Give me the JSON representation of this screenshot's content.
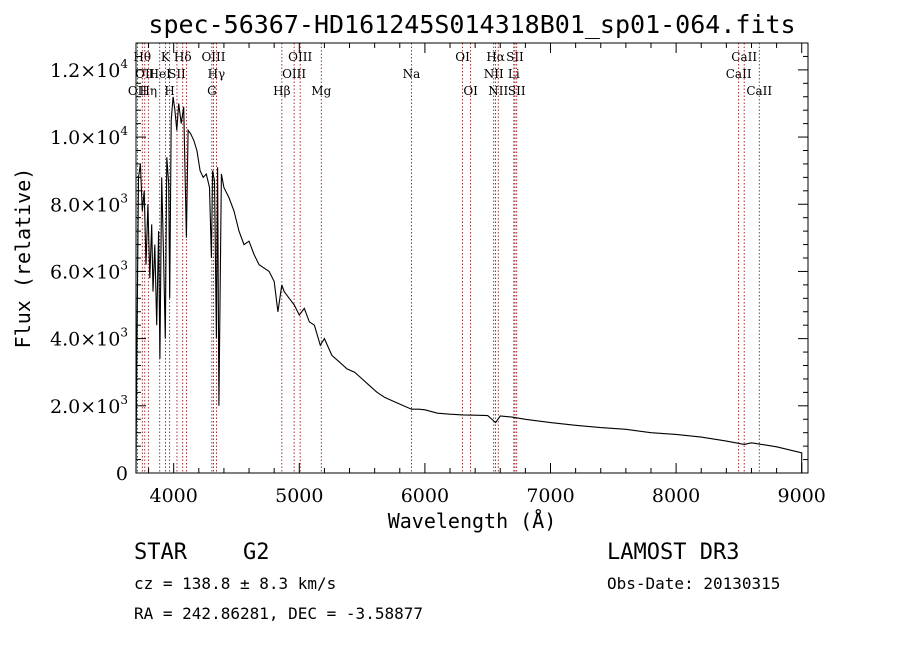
{
  "chart_data": {
    "type": "line",
    "title": "spec-56367-HD161245S014318B01_sp01-064.fits",
    "xlabel": "Wavelength (Å)",
    "ylabel": "Flux (relative)",
    "xlim": [
      3700,
      9050
    ],
    "ylim": [
      0,
      12800
    ],
    "x_ticks": [
      4000,
      5000,
      6000,
      7000,
      8000,
      9000
    ],
    "x_tick_labels": [
      "4000",
      "5000",
      "6000",
      "7000",
      "8000",
      "9000"
    ],
    "y_ticks": [
      0,
      2000,
      4000,
      6000,
      8000,
      10000,
      12000
    ],
    "y_tick_labels": [
      {
        "mantissa": "0",
        "exp": ""
      },
      {
        "mantissa": "2.0×10",
        "exp": "3"
      },
      {
        "mantissa": "4.0×10",
        "exp": "3"
      },
      {
        "mantissa": "6.0×10",
        "exp": "3"
      },
      {
        "mantissa": "8.0×10",
        "exp": "3"
      },
      {
        "mantissa": "1.0×10",
        "exp": "4"
      },
      {
        "mantissa": "1.2×10",
        "exp": "4"
      }
    ],
    "series": [
      {
        "x": [
          3700,
          3705,
          3720,
          3735,
          3750,
          3765,
          3780,
          3795,
          3810,
          3825,
          3835,
          3850,
          3865,
          3880,
          3890,
          3905,
          3920,
          3933,
          3945,
          3960,
          3968,
          3980,
          3995,
          4010,
          4025,
          4040,
          4060,
          4080,
          4101,
          4115,
          4135,
          4160,
          4185,
          4210,
          4235,
          4260,
          4285,
          4300,
          4310,
          4325,
          4340,
          4350,
          4360,
          4380,
          4400,
          4440,
          4480,
          4520,
          4560,
          4600,
          4640,
          4680,
          4720,
          4760,
          4800,
          4830,
          4861,
          4880,
          4920,
          4960,
          5000,
          5040,
          5080,
          5120,
          5167,
          5200,
          5260,
          5320,
          5380,
          5440,
          5500,
          5560,
          5620,
          5680,
          5740,
          5800,
          5893,
          5950,
          6000,
          6100,
          6200,
          6300,
          6400,
          6500,
          6563,
          6600,
          6700,
          6800,
          6900,
          7000,
          7200,
          7400,
          7600,
          7800,
          8000,
          8200,
          8400,
          8542,
          8600,
          8800,
          9000,
          9000
        ],
        "y": [
          0,
          2700,
          8800,
          9200,
          7800,
          8400,
          6200,
          8000,
          5800,
          7400,
          5400,
          6800,
          4400,
          7200,
          3400,
          8800,
          6400,
          4000,
          9400,
          8600,
          5200,
          10500,
          11200,
          10800,
          10200,
          11000,
          10400,
          10900,
          7000,
          10200,
          10100,
          9900,
          9600,
          9000,
          8800,
          8900,
          8500,
          6400,
          9000,
          8700,
          4000,
          9100,
          2000,
          8900,
          8500,
          8200,
          7800,
          7200,
          6800,
          6900,
          6500,
          6200,
          6100,
          6000,
          5700,
          4800,
          5600,
          5400,
          5200,
          5000,
          4700,
          4900,
          4500,
          4400,
          3800,
          4000,
          3500,
          3300,
          3100,
          3000,
          2800,
          2600,
          2400,
          2250,
          2150,
          2050,
          1900,
          1900,
          1880,
          1780,
          1750,
          1730,
          1720,
          1710,
          1500,
          1700,
          1660,
          1600,
          1550,
          1500,
          1420,
          1350,
          1300,
          1200,
          1150,
          1070,
          950,
          850,
          900,
          780,
          600,
          0
        ]
      }
    ],
    "spectral_lines": [
      {
        "wave": 3712,
        "label": "OII",
        "row": 3
      },
      {
        "wave": 3750,
        "label": "Hθ",
        "row": 1
      },
      {
        "wave": 3770,
        "label": "OII",
        "row": 2
      },
      {
        "wave": 3798,
        "label": "Hη",
        "row": 3
      },
      {
        "wave": 3889,
        "label": "HeI",
        "row": 2
      },
      {
        "wave": 3934,
        "label": "K",
        "row": 1
      },
      {
        "wave": 3968,
        "label": "H",
        "row": 3
      },
      {
        "wave": 4026,
        "label": "SII",
        "row": 2
      },
      {
        "wave": 4072,
        "label": "Hδ",
        "row": 1
      },
      {
        "wave": 4101,
        "label": "",
        "row": 0
      },
      {
        "wave": 4304,
        "label": "G",
        "row": 3
      },
      {
        "wave": 4317,
        "label": "OIII",
        "row": 1
      },
      {
        "wave": 4340,
        "label": "Hγ",
        "row": 2
      },
      {
        "wave": 4861,
        "label": "Hβ",
        "row": 3
      },
      {
        "wave": 4959,
        "label": "OIII",
        "row": 2
      },
      {
        "wave": 5007,
        "label": "OIII",
        "row": 1
      },
      {
        "wave": 5175,
        "label": "Mg",
        "row": 3
      },
      {
        "wave": 5893,
        "label": "Na",
        "row": 2
      },
      {
        "wave": 6300,
        "label": "OI",
        "row": 1
      },
      {
        "wave": 6364,
        "label": "OI",
        "row": 3
      },
      {
        "wave": 6548,
        "label": "NII",
        "row": 2
      },
      {
        "wave": 6563,
        "label": "Hα",
        "row": 1
      },
      {
        "wave": 6584,
        "label": "NII",
        "row": 3
      },
      {
        "wave": 6708,
        "label": "Li",
        "row": 2
      },
      {
        "wave": 6717,
        "label": "SII",
        "row": 1
      },
      {
        "wave": 6731,
        "label": "SII",
        "row": 3
      },
      {
        "wave": 8498,
        "label": "CaII",
        "row": 2
      },
      {
        "wave": 8542,
        "label": "CaII",
        "row": 1
      },
      {
        "wave": 8662,
        "label": "CaII",
        "row": 3
      }
    ],
    "line_color": "#000000",
    "marker_color": "#8b0000",
    "grid": false
  },
  "info": {
    "class": "STAR",
    "subclass": "G2",
    "survey": "LAMOST DR3",
    "cz": "cz = 138.8 ± 8.3 km/s",
    "obs_date": "Obs-Date: 20130315",
    "radec": "RA = 242.86281, DEC =  -3.58877"
  }
}
